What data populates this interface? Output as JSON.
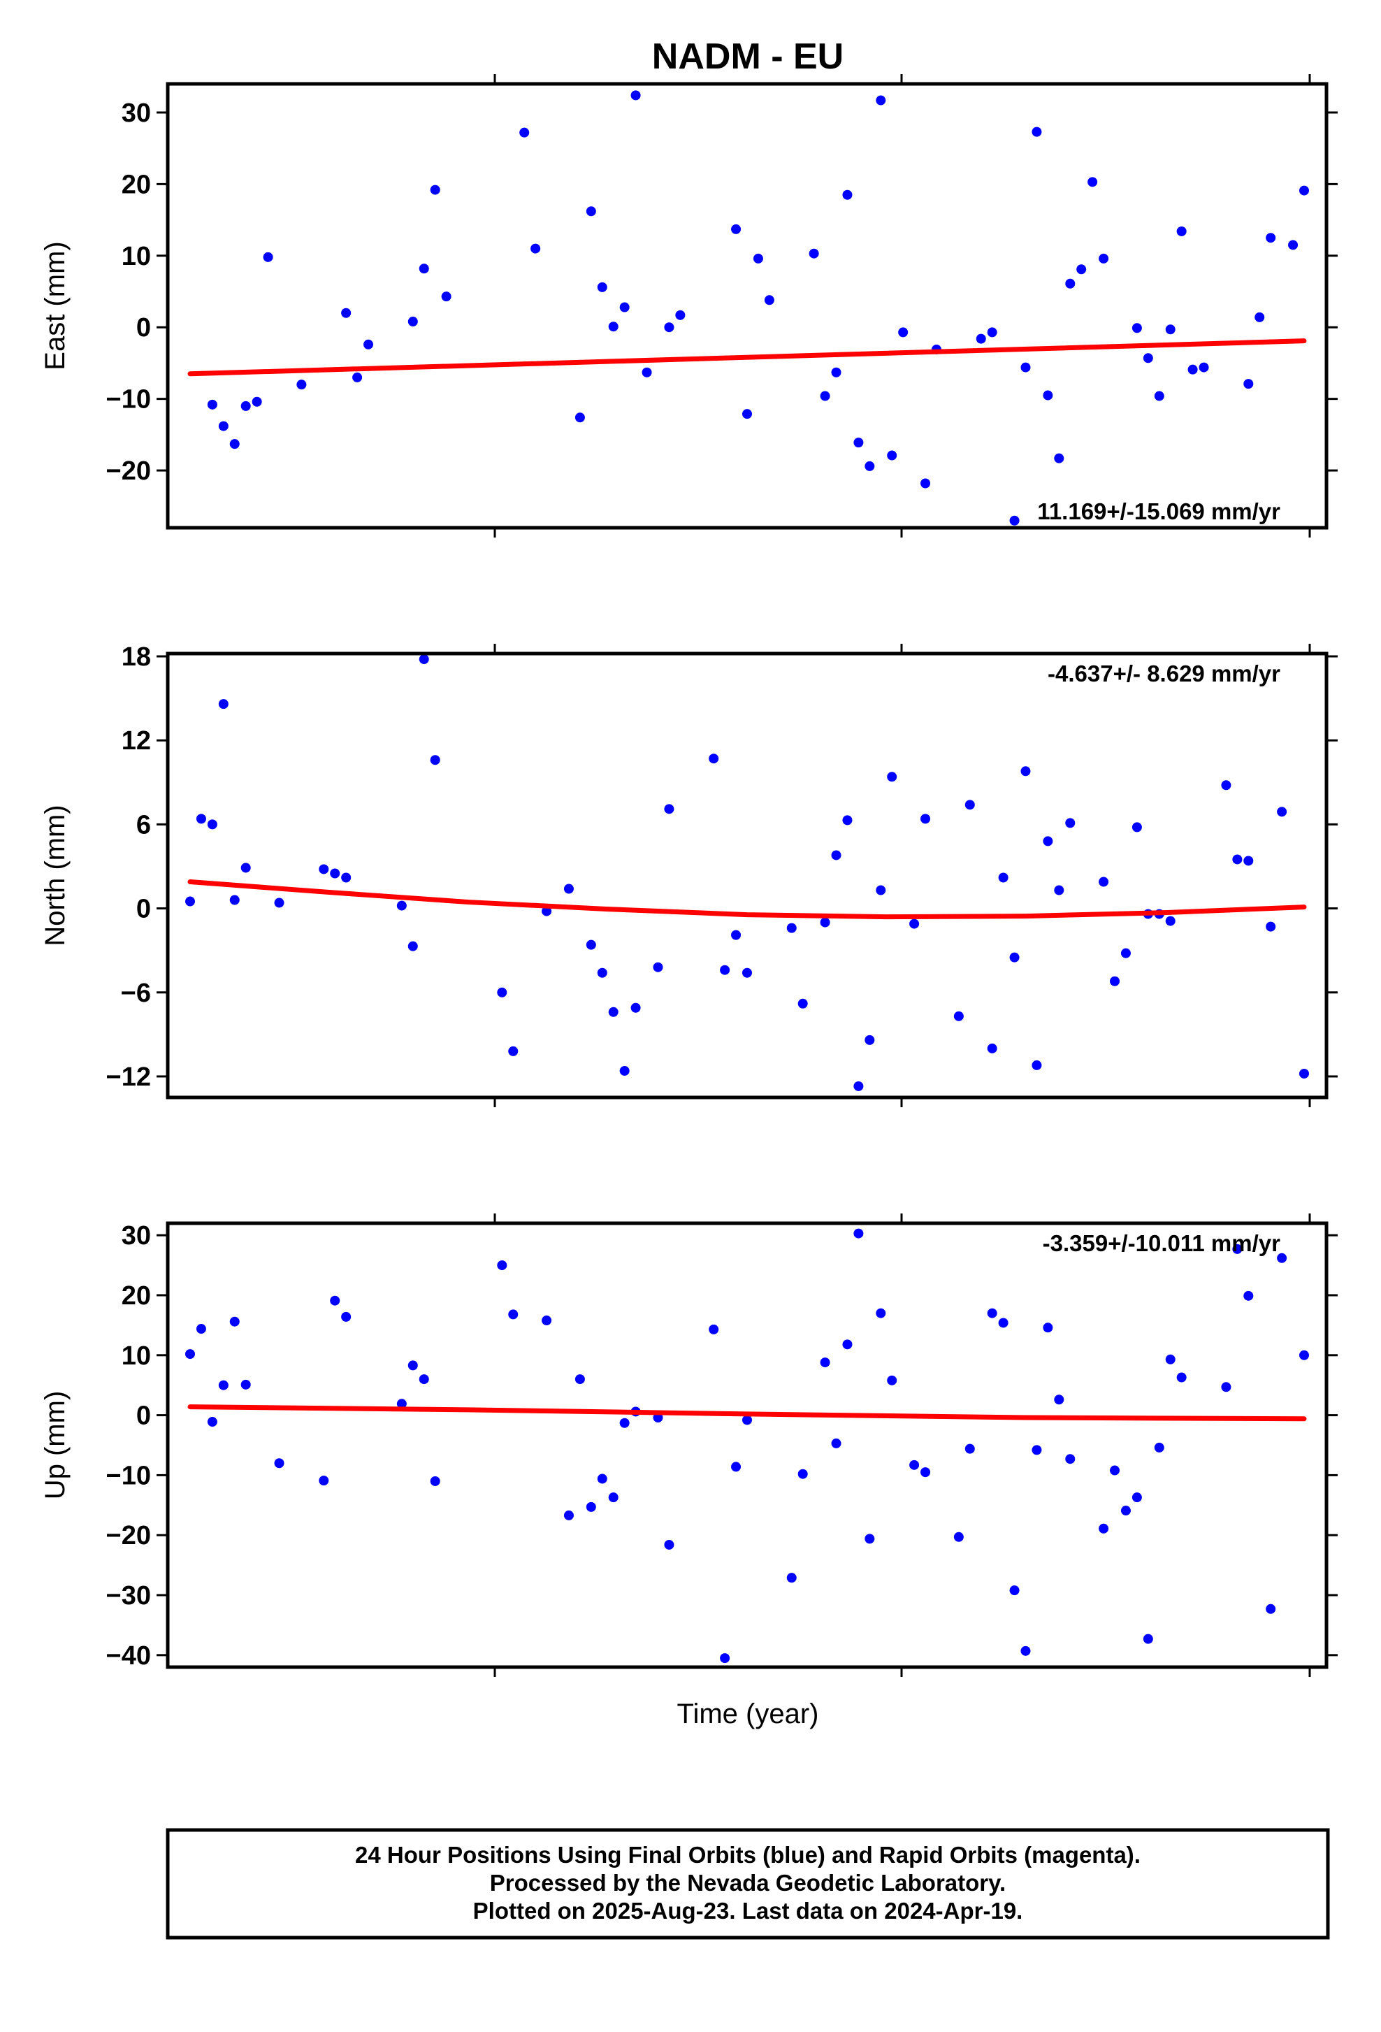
{
  "chart_data": {
    "type": "scatter",
    "title": "NADM - EU",
    "xlabel": "Time (year)",
    "grid": false,
    "colors": {
      "points": "#0000ff",
      "trend": "#ff0000",
      "frame": "#000000"
    },
    "panels": [
      {
        "id": "east",
        "ylabel": "East (mm)",
        "ylim": [
          -28,
          34
        ],
        "yticks": [
          30,
          20,
          10,
          0,
          -10,
          -20
        ],
        "ytick_labels": [
          "30",
          "20",
          "10",
          "0",
          "−10",
          "−20"
        ],
        "rate": "11.169+/-15.069 mm/yr",
        "rate_position": "bottom-right",
        "x": [
          0.02,
          0.03,
          0.04,
          0.05,
          0.06,
          0.07,
          0.1,
          0.14,
          0.15,
          0.16,
          0.2,
          0.21,
          0.22,
          0.23,
          0.3,
          0.31,
          0.35,
          0.36,
          0.37,
          0.38,
          0.39,
          0.4,
          0.41,
          0.43,
          0.44,
          0.49,
          0.5,
          0.51,
          0.52,
          0.56,
          0.57,
          0.58,
          0.59,
          0.6,
          0.61,
          0.62,
          0.63,
          0.64,
          0.66,
          0.67,
          0.71,
          0.72,
          0.74,
          0.75,
          0.76,
          0.77,
          0.78,
          0.79,
          0.8,
          0.81,
          0.82,
          0.85,
          0.86,
          0.87,
          0.88,
          0.89,
          0.9,
          0.91,
          0.95,
          0.96,
          0.97,
          0.99,
          1.0
        ],
        "y": [
          -10.8,
          -13.8,
          -16.3,
          -11.0,
          -10.4,
          9.8,
          -8.0,
          2.0,
          -7.0,
          -2.4,
          0.8,
          8.2,
          19.2,
          4.3,
          27.2,
          11.0,
          -12.6,
          16.2,
          5.6,
          0.1,
          2.8,
          32.4,
          -6.3,
          0.0,
          1.7,
          13.7,
          -12.1,
          9.6,
          3.8,
          10.3,
          -9.6,
          -6.3,
          18.5,
          -16.1,
          -19.4,
          31.7,
          -17.9,
          -0.7,
          -21.8,
          -3.1,
          -1.6,
          -0.7,
          -27.0,
          -5.6,
          27.3,
          -9.5,
          -18.3,
          6.1,
          8.1,
          20.3,
          9.6,
          -0.1,
          -4.3,
          -9.6,
          -0.3,
          13.4,
          -5.9,
          -5.6,
          -7.9,
          1.4,
          12.5,
          11.5,
          19.1
        ],
        "trend": {
          "x": [
            0.0,
            1.0
          ],
          "y": [
            -6.5,
            -1.9
          ]
        }
      },
      {
        "id": "north",
        "ylabel": "North (mm)",
        "ylim": [
          -13.5,
          18.2
        ],
        "yticks": [
          18,
          12,
          6,
          0,
          -6,
          -12
        ],
        "ytick_labels": [
          "18",
          "12",
          "6",
          "0",
          "−6",
          "−12"
        ],
        "rate": "-4.637+/- 8.629 mm/yr",
        "rate_position": "top-right",
        "x": [
          0.0,
          0.01,
          0.02,
          0.03,
          0.04,
          0.05,
          0.08,
          0.12,
          0.13,
          0.14,
          0.19,
          0.2,
          0.21,
          0.22,
          0.28,
          0.29,
          0.32,
          0.34,
          0.36,
          0.37,
          0.38,
          0.39,
          0.4,
          0.42,
          0.43,
          0.47,
          0.48,
          0.49,
          0.5,
          0.54,
          0.55,
          0.57,
          0.58,
          0.59,
          0.6,
          0.61,
          0.62,
          0.63,
          0.65,
          0.66,
          0.69,
          0.7,
          0.72,
          0.73,
          0.74,
          0.75,
          0.76,
          0.77,
          0.78,
          0.79,
          0.82,
          0.83,
          0.84,
          0.85,
          0.86,
          0.87,
          0.88,
          0.93,
          0.94,
          0.95,
          0.97,
          0.98,
          1.0
        ],
        "y": [
          0.5,
          6.4,
          6.0,
          14.6,
          0.6,
          2.9,
          0.4,
          2.8,
          2.5,
          2.2,
          0.2,
          -2.7,
          17.8,
          10.6,
          -6.0,
          -10.2,
          -0.2,
          1.4,
          -2.6,
          -4.6,
          -7.4,
          -11.6,
          -7.1,
          -4.2,
          7.1,
          10.7,
          -4.4,
          -1.9,
          -4.6,
          -1.4,
          -6.8,
          -1.0,
          3.8,
          6.3,
          -12.7,
          -9.4,
          1.3,
          9.4,
          -1.1,
          6.4,
          -7.7,
          7.4,
          -10.0,
          2.2,
          -3.5,
          9.8,
          -11.2,
          4.8,
          1.3,
          6.1,
          1.9,
          -5.2,
          -3.2,
          5.8,
          -0.4,
          -0.4,
          -0.9,
          8.8,
          3.5,
          3.4,
          -1.3,
          6.9,
          -11.8
        ],
        "trend": {
          "x": [
            0.0,
            0.125,
            0.25,
            0.375,
            0.5,
            0.625,
            0.75,
            0.875,
            1.0
          ],
          "y": [
            1.9,
            1.15,
            0.45,
            -0.05,
            -0.45,
            -0.6,
            -0.55,
            -0.3,
            0.1
          ]
        }
      },
      {
        "id": "up",
        "ylabel": "Up (mm)",
        "ylim": [
          -42,
          32
        ],
        "yticks": [
          30,
          20,
          10,
          0,
          -10,
          -20,
          -30,
          -40
        ],
        "ytick_labels": [
          "30",
          "20",
          "10",
          "0",
          "−10",
          "−20",
          "−30",
          "−40"
        ],
        "rate": "-3.359+/-10.011 mm/yr",
        "rate_position": "top-right",
        "x": [
          0.0,
          0.01,
          0.02,
          0.03,
          0.04,
          0.05,
          0.08,
          0.12,
          0.13,
          0.14,
          0.19,
          0.2,
          0.21,
          0.22,
          0.28,
          0.29,
          0.32,
          0.34,
          0.35,
          0.36,
          0.37,
          0.38,
          0.39,
          0.4,
          0.42,
          0.43,
          0.47,
          0.48,
          0.49,
          0.5,
          0.54,
          0.55,
          0.57,
          0.58,
          0.59,
          0.6,
          0.61,
          0.62,
          0.63,
          0.65,
          0.66,
          0.69,
          0.7,
          0.72,
          0.73,
          0.74,
          0.75,
          0.76,
          0.77,
          0.78,
          0.79,
          0.82,
          0.83,
          0.84,
          0.85,
          0.86,
          0.87,
          0.88,
          0.89,
          0.93,
          0.94,
          0.95,
          0.97,
          0.98,
          1.0
        ],
        "y": [
          10.2,
          14.4,
          -1.1,
          5.0,
          15.6,
          5.1,
          -8.0,
          -10.9,
          19.1,
          16.4,
          1.9,
          8.3,
          6.0,
          -11.0,
          25.0,
          16.8,
          15.8,
          -16.7,
          6.0,
          -15.3,
          -10.6,
          -13.7,
          -1.3,
          0.6,
          -0.4,
          -21.6,
          14.3,
          -40.5,
          -8.6,
          -0.8,
          -27.1,
          -9.8,
          8.8,
          -4.7,
          11.8,
          30.3,
          -20.6,
          17.0,
          5.8,
          -8.3,
          -9.5,
          -20.3,
          -5.6,
          17.0,
          15.4,
          -29.2,
          -39.3,
          -5.8,
          14.6,
          2.6,
          -7.3,
          -18.9,
          -9.2,
          -15.9,
          -13.7,
          -37.3,
          -5.4,
          9.3,
          6.3,
          4.7,
          27.7,
          19.9,
          -32.3,
          26.2,
          10.0
        ],
        "trend": {
          "x": [
            0.0,
            0.25,
            0.5,
            0.75,
            1.0
          ],
          "y": [
            1.4,
            0.9,
            0.2,
            -0.4,
            -0.6
          ]
        }
      }
    ]
  },
  "footer": {
    "lines": [
      "24 Hour Positions Using Final Orbits (blue) and Rapid Orbits (magenta).",
      "Processed by the Nevada Geodetic Laboratory.",
      "Plotted on 2025-Aug-23. Last data on 2024-Apr-19."
    ]
  }
}
